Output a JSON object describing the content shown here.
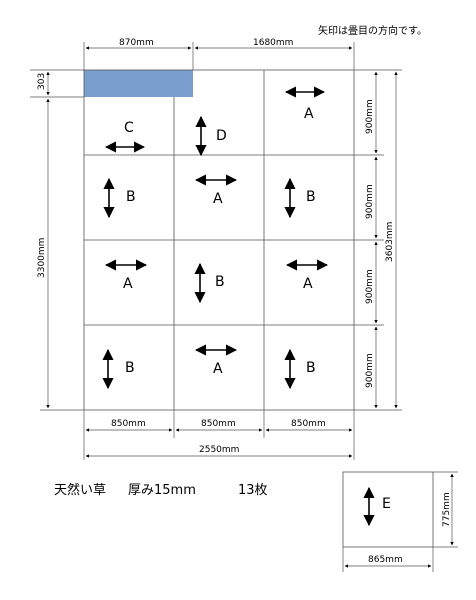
{
  "note": "矢印は畳目の方向です。",
  "caption": {
    "material": "天然い草",
    "thickness": "厚み15mm",
    "count": "13枚"
  },
  "dimensions": {
    "top_left": "870mm",
    "top_right": "1680mm",
    "band_height": "303",
    "left_height": "3300mm",
    "right_total": "3603mm",
    "row_heights": [
      "900mm",
      "900mm",
      "900mm",
      "900mm"
    ],
    "col_widths": [
      "850mm",
      "850mm",
      "850mm"
    ],
    "total_width": "2550mm",
    "extra_height": "775mm",
    "extra_width": "865mm"
  },
  "tiles": [
    {
      "label": "C",
      "dir": "h"
    },
    {
      "label": "D",
      "dir": "v"
    },
    {
      "label": "A",
      "dir": "h"
    },
    {
      "label": "B",
      "dir": "v"
    },
    {
      "label": "A",
      "dir": "h"
    },
    {
      "label": "B",
      "dir": "v"
    },
    {
      "label": "A",
      "dir": "h"
    },
    {
      "label": "B",
      "dir": "v"
    },
    {
      "label": "A",
      "dir": "h"
    },
    {
      "label": "B",
      "dir": "v"
    },
    {
      "label": "A",
      "dir": "h"
    },
    {
      "label": "B",
      "dir": "v"
    },
    {
      "label": "E",
      "dir": "v"
    }
  ],
  "colors": {
    "highlight": "#7a9fcf",
    "line": "#555555"
  }
}
